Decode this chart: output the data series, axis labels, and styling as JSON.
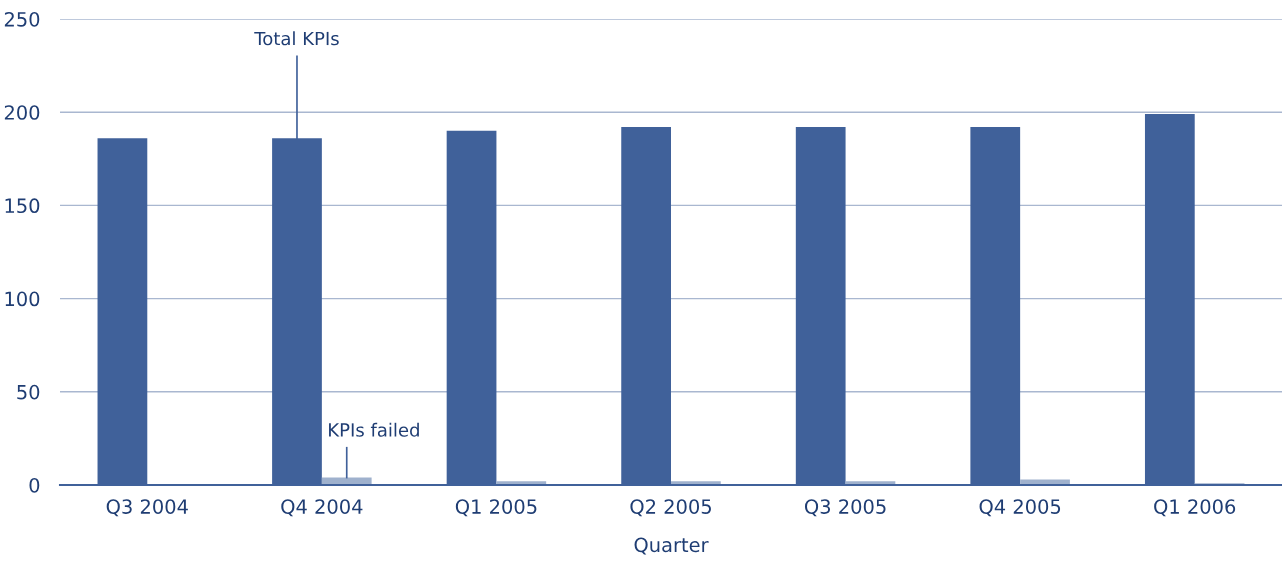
{
  "chart_data": {
    "type": "bar",
    "xlabel": "Quarter",
    "categories": [
      "Q3 2004",
      "Q4 2004",
      "Q1 2005",
      "Q2 2005",
      "Q3 2005",
      "Q4 2005",
      "Q1 2006"
    ],
    "series": [
      {
        "name": "Total KPIs",
        "color": "#40619a",
        "values": [
          186,
          186,
          190,
          192,
          192,
          192,
          199
        ]
      },
      {
        "name": "KPIs failed",
        "color": "#9fb1cd",
        "values": [
          0,
          4,
          2,
          2,
          2,
          3,
          1
        ]
      }
    ],
    "ylim": [
      0,
      250
    ],
    "yticks": [
      0,
      50,
      100,
      150,
      200,
      250
    ],
    "grid": "y",
    "legend": false
  }
}
